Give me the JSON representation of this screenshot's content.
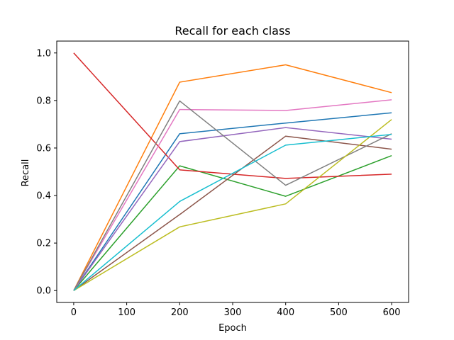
{
  "chart_data": {
    "type": "line",
    "title": "Recall for each class",
    "xlabel": "Epoch",
    "ylabel": "Recall",
    "x": [
      0,
      200,
      400,
      600
    ],
    "xlim": [
      -32,
      632
    ],
    "ylim": [
      -0.05,
      1.05
    ],
    "xticks": [
      0,
      100,
      200,
      300,
      400,
      500,
      600
    ],
    "yticks": [
      0.0,
      0.2,
      0.4,
      0.6,
      0.8,
      1.0
    ],
    "grid": false,
    "series": [
      {
        "color": "#1f77b4",
        "values": [
          0.0,
          0.66,
          0.705,
          0.748
        ]
      },
      {
        "color": "#ff7f0e",
        "values": [
          0.0,
          0.877,
          0.95,
          0.833
        ]
      },
      {
        "color": "#2ca02c",
        "values": [
          0.0,
          0.525,
          0.397,
          0.568
        ]
      },
      {
        "color": "#d62728",
        "values": [
          1.0,
          0.508,
          0.472,
          0.49
        ]
      },
      {
        "color": "#9467bd",
        "values": [
          0.0,
          0.627,
          0.686,
          0.637
        ]
      },
      {
        "color": "#8c564b",
        "values": [
          0.0,
          0.32,
          0.65,
          0.595
        ]
      },
      {
        "color": "#e377c2",
        "values": [
          0.0,
          0.762,
          0.758,
          0.803
        ]
      },
      {
        "color": "#7f7f7f",
        "values": [
          0.0,
          0.798,
          0.443,
          0.66
        ]
      },
      {
        "color": "#bcbd22",
        "values": [
          0.0,
          0.268,
          0.365,
          0.72
        ]
      },
      {
        "color": "#17becf",
        "values": [
          0.0,
          0.375,
          0.612,
          0.657
        ]
      }
    ]
  }
}
